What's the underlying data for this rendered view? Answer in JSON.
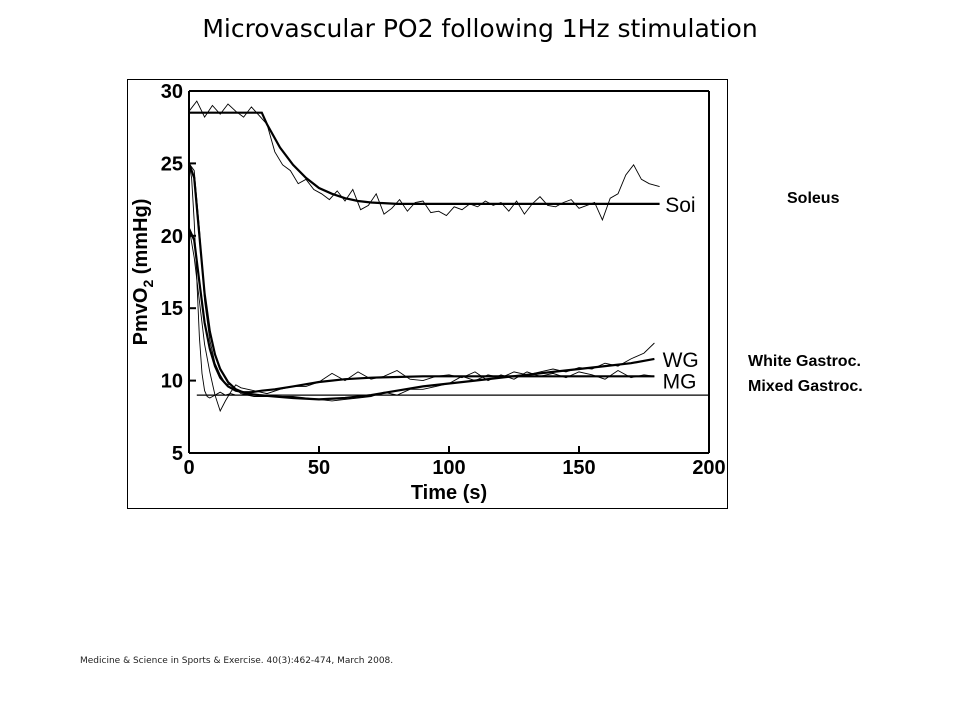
{
  "slide": {
    "title": "Microvascular PO2 following 1Hz stimulation",
    "citation": "Medicine & Science in Sports & Exercise. 40(3):462-474, March 2008."
  },
  "side_labels": {
    "soleus": "Soleus",
    "white_gastroc": "White Gastroc.",
    "mixed_gastroc": "Mixed Gastroc."
  },
  "chart_data": {
    "type": "line",
    "title": "",
    "xlabel": "Time (s)",
    "ylabel_main": "PmvO",
    "ylabel_sub": "2",
    "ylabel_unit": " (mmHg)",
    "xlim": [
      0,
      200
    ],
    "ylim": [
      5,
      30
    ],
    "x_ticks": [
      0,
      50,
      100,
      150,
      200
    ],
    "y_ticks": [
      5,
      10,
      15,
      20,
      25,
      30
    ],
    "grid": false,
    "series": [
      {
        "name": "Soi",
        "fit": {
          "x": [
            0,
            28,
            30,
            35,
            40,
            45,
            50,
            55,
            60,
            65,
            70,
            80,
            181
          ],
          "y": [
            28.5,
            28.5,
            27.7,
            26.1,
            24.9,
            24.0,
            23.3,
            22.9,
            22.6,
            22.4,
            22.3,
            22.2,
            22.2
          ]
        },
        "raw": {
          "x": [
            0,
            3,
            6,
            9,
            12,
            15,
            18,
            21,
            24,
            27,
            30,
            33,
            36,
            39,
            42,
            45,
            48,
            51,
            54,
            57,
            60,
            63,
            66,
            69,
            72,
            75,
            78,
            81,
            84,
            87,
            90,
            93,
            96,
            99,
            102,
            105,
            108,
            111,
            114,
            117,
            120,
            123,
            126,
            129,
            132,
            135,
            138,
            141,
            144,
            147,
            150,
            153,
            156,
            159,
            162,
            165,
            168,
            171,
            174,
            177,
            181
          ],
          "y": [
            28.6,
            29.3,
            28.2,
            29.0,
            28.4,
            29.1,
            28.6,
            28.2,
            28.9,
            28.3,
            27.7,
            25.8,
            24.9,
            24.5,
            23.6,
            23.9,
            23.2,
            22.9,
            22.5,
            23.1,
            22.4,
            23.2,
            21.8,
            22.1,
            22.9,
            21.5,
            21.9,
            22.5,
            21.7,
            22.3,
            22.4,
            21.6,
            21.7,
            21.4,
            22.0,
            21.8,
            22.2,
            22.0,
            22.4,
            22.1,
            22.3,
            21.7,
            22.4,
            21.5,
            22.2,
            22.7,
            22.1,
            22.0,
            22.3,
            22.5,
            21.9,
            22.1,
            22.3,
            21.1,
            22.6,
            22.9,
            24.2,
            24.9,
            23.9,
            23.6,
            23.4
          ]
        }
      },
      {
        "name": "WG",
        "fit": {
          "x": [
            0,
            2,
            4,
            6,
            8,
            10,
            12,
            15,
            18,
            22,
            27,
            33,
            40,
            50,
            60,
            70,
            80,
            90,
            100,
            110,
            120,
            130,
            140,
            150,
            160,
            170,
            179
          ],
          "y": [
            25.0,
            24.0,
            20.0,
            16.0,
            13.4,
            11.8,
            10.8,
            9.9,
            9.4,
            9.1,
            9.0,
            8.9,
            8.8,
            8.7,
            8.8,
            9.0,
            9.3,
            9.6,
            9.8,
            10.0,
            10.2,
            10.4,
            10.6,
            10.8,
            11.0,
            11.2,
            11.5
          ]
        },
        "raw": {
          "x": [
            0,
            2,
            4,
            6,
            8,
            10,
            12,
            14,
            16,
            18,
            20,
            25,
            30,
            35,
            40,
            45,
            50,
            55,
            60,
            65,
            70,
            75,
            80,
            85,
            90,
            95,
            100,
            105,
            110,
            115,
            120,
            125,
            130,
            135,
            140,
            145,
            150,
            155,
            160,
            165,
            170,
            175,
            179
          ],
          "y": [
            25.0,
            24.5,
            20.5,
            15.5,
            12.8,
            11.2,
            10.4,
            9.8,
            9.7,
            9.4,
            9.1,
            8.9,
            8.9,
            8.9,
            8.9,
            8.8,
            8.7,
            8.6,
            8.7,
            8.8,
            8.9,
            9.2,
            9.0,
            9.4,
            9.4,
            9.6,
            9.8,
            10.3,
            10.0,
            10.4,
            10.2,
            10.6,
            10.4,
            10.6,
            10.8,
            10.6,
            10.9,
            10.8,
            11.2,
            11.0,
            11.5,
            11.9,
            12.6
          ]
        }
      },
      {
        "name": "MG",
        "fit": {
          "x": [
            0,
            2,
            4,
            6,
            8,
            10,
            12,
            15,
            18,
            21,
            24,
            28,
            33,
            40,
            50,
            60,
            70,
            80,
            90,
            100,
            110,
            120,
            130,
            140,
            150,
            160,
            170,
            179
          ],
          "y": [
            20.5,
            19.7,
            16.8,
            14.0,
            12.2,
            11.0,
            10.2,
            9.6,
            9.3,
            9.2,
            9.2,
            9.3,
            9.4,
            9.6,
            9.9,
            10.1,
            10.2,
            10.25,
            10.3,
            10.3,
            10.3,
            10.3,
            10.3,
            10.3,
            10.3,
            10.3,
            10.3,
            10.3
          ]
        },
        "raw": {
          "x": [
            0,
            2,
            4,
            6,
            8,
            10,
            12,
            14,
            16,
            18,
            20,
            25,
            30,
            35,
            40,
            45,
            50,
            55,
            60,
            65,
            70,
            75,
            80,
            85,
            90,
            95,
            100,
            105,
            110,
            115,
            120,
            125,
            130,
            135,
            140,
            145,
            150,
            155,
            160,
            165,
            170,
            175,
            179
          ],
          "y": [
            20.6,
            18.5,
            15.5,
            12.5,
            10.6,
            9.0,
            7.9,
            8.6,
            9.2,
            9.7,
            9.5,
            9.3,
            9.1,
            9.4,
            9.6,
            9.6,
            9.9,
            10.5,
            10.0,
            10.6,
            10.1,
            10.3,
            10.7,
            10.1,
            10.0,
            10.3,
            10.4,
            10.2,
            10.6,
            10.0,
            10.4,
            10.1,
            10.6,
            10.3,
            10.5,
            10.2,
            10.6,
            10.4,
            10.1,
            10.7,
            10.2,
            10.4,
            10.3
          ]
        }
      },
      {
        "name": "",
        "fit": {
          "x": [
            3,
            200
          ],
          "y": [
            9.0,
            9.0
          ]
        },
        "raw": {
          "x": [
            0,
            1,
            2,
            3,
            4,
            5,
            6,
            7,
            8,
            10,
            12,
            14,
            16,
            18,
            20
          ],
          "y": [
            25.0,
            24.0,
            21.0,
            17.0,
            13.0,
            10.5,
            9.3,
            8.9,
            8.8,
            9.0,
            9.2,
            9.0,
            9.1,
            9.0,
            9.0
          ]
        }
      }
    ]
  }
}
